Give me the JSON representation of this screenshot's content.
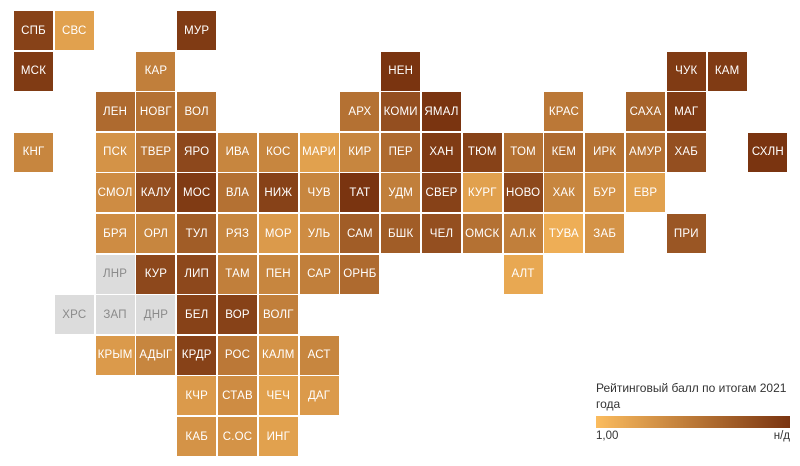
{
  "legend": {
    "title": "Рейтинговый балл по итогам 2021 года",
    "min_label": "1,00",
    "max_label": "н/д",
    "gradient_start": "#fbbc5e",
    "gradient_end": "#7a3410",
    "nodata_color": "#dcdcdc"
  },
  "regions": [
    {
      "code": "СПБ",
      "col": 0,
      "row": 0,
      "score": 0.9
    },
    {
      "code": "СВС",
      "col": 1,
      "row": 0,
      "score": 0.2
    },
    {
      "code": "МУР",
      "col": 4,
      "row": 0,
      "score": 0.95
    },
    {
      "code": "МСК",
      "col": 0,
      "row": 1,
      "score": 0.95
    },
    {
      "code": "КАР",
      "col": 3,
      "row": 1,
      "score": 0.45
    },
    {
      "code": "НЕН",
      "col": 9,
      "row": 1,
      "score": 1.0
    },
    {
      "code": "ЧУК",
      "col": 16,
      "row": 1,
      "score": 0.95
    },
    {
      "code": "КАМ",
      "col": 17,
      "row": 1,
      "score": 0.95
    },
    {
      "code": "ЛЕН",
      "col": 2,
      "row": 2,
      "score": 0.6
    },
    {
      "code": "НОВГ",
      "col": 3,
      "row": 2,
      "score": 0.55
    },
    {
      "code": "ВОЛ",
      "col": 4,
      "row": 2,
      "score": 0.55
    },
    {
      "code": "АРХ",
      "col": 8,
      "row": 2,
      "score": 0.55
    },
    {
      "code": "КОМИ",
      "col": 9,
      "row": 2,
      "score": 0.8
    },
    {
      "code": "ЯМАЛ",
      "col": 10,
      "row": 2,
      "score": 1.0
    },
    {
      "code": "КРАС",
      "col": 13,
      "row": 2,
      "score": 0.5
    },
    {
      "code": "САХА",
      "col": 15,
      "row": 2,
      "score": 0.65
    },
    {
      "code": "МАГ",
      "col": 16,
      "row": 2,
      "score": 0.95
    },
    {
      "code": "КНГ",
      "col": 0,
      "row": 3,
      "score": 0.4
    },
    {
      "code": "ПСК",
      "col": 2,
      "row": 3,
      "score": 0.3
    },
    {
      "code": "ТВЕР",
      "col": 3,
      "row": 3,
      "score": 0.5
    },
    {
      "code": "ЯРО",
      "col": 4,
      "row": 3,
      "score": 0.85
    },
    {
      "code": "ИВА",
      "col": 5,
      "row": 3,
      "score": 0.4
    },
    {
      "code": "КОС",
      "col": 6,
      "row": 3,
      "score": 0.4
    },
    {
      "code": "МАРИ",
      "col": 7,
      "row": 3,
      "score": 0.2
    },
    {
      "code": "КИР",
      "col": 8,
      "row": 3,
      "score": 0.4
    },
    {
      "code": "ПЕР",
      "col": 9,
      "row": 3,
      "score": 0.6
    },
    {
      "code": "ХАН",
      "col": 10,
      "row": 3,
      "score": 0.95
    },
    {
      "code": "ТЮМ",
      "col": 11,
      "row": 3,
      "score": 0.9
    },
    {
      "code": "ТОМ",
      "col": 12,
      "row": 3,
      "score": 0.55
    },
    {
      "code": "КЕМ",
      "col": 13,
      "row": 3,
      "score": 0.6
    },
    {
      "code": "ИРК",
      "col": 14,
      "row": 3,
      "score": 0.55
    },
    {
      "code": "АМУР",
      "col": 15,
      "row": 3,
      "score": 0.55
    },
    {
      "code": "ХАБ",
      "col": 16,
      "row": 3,
      "score": 0.8
    },
    {
      "code": "СХЛН",
      "col": 18,
      "row": 3,
      "score": 1.0
    },
    {
      "code": "СМОЛ",
      "col": 2,
      "row": 4,
      "score": 0.35
    },
    {
      "code": "КАЛУ",
      "col": 3,
      "row": 4,
      "score": 0.8
    },
    {
      "code": "МОС",
      "col": 4,
      "row": 4,
      "score": 0.95
    },
    {
      "code": "ВЛА",
      "col": 5,
      "row": 4,
      "score": 0.55
    },
    {
      "code": "НИЖ",
      "col": 6,
      "row": 4,
      "score": 0.9
    },
    {
      "code": "ЧУВ",
      "col": 7,
      "row": 4,
      "score": 0.4
    },
    {
      "code": "ТАТ",
      "col": 8,
      "row": 4,
      "score": 1.0
    },
    {
      "code": "УДМ",
      "col": 9,
      "row": 4,
      "score": 0.45
    },
    {
      "code": "СВЕР",
      "col": 10,
      "row": 4,
      "score": 0.9
    },
    {
      "code": "КУРГ",
      "col": 11,
      "row": 4,
      "score": 0.2
    },
    {
      "code": "НОВО",
      "col": 12,
      "row": 4,
      "score": 0.85
    },
    {
      "code": "ХАК",
      "col": 13,
      "row": 4,
      "score": 0.4
    },
    {
      "code": "БУР",
      "col": 14,
      "row": 4,
      "score": 0.3
    },
    {
      "code": "ЕВР",
      "col": 15,
      "row": 4,
      "score": 0.2
    },
    {
      "code": "БРЯ",
      "col": 2,
      "row": 5,
      "score": 0.35
    },
    {
      "code": "ОРЛ",
      "col": 3,
      "row": 5,
      "score": 0.4
    },
    {
      "code": "ТУЛ",
      "col": 4,
      "row": 5,
      "score": 0.7
    },
    {
      "code": "РЯЗ",
      "col": 5,
      "row": 5,
      "score": 0.4
    },
    {
      "code": "МОР",
      "col": 6,
      "row": 5,
      "score": 0.25
    },
    {
      "code": "УЛЬ",
      "col": 7,
      "row": 5,
      "score": 0.35
    },
    {
      "code": "САМ",
      "col": 8,
      "row": 5,
      "score": 0.7
    },
    {
      "code": "БШК",
      "col": 9,
      "row": 5,
      "score": 0.7
    },
    {
      "code": "ЧЕЛ",
      "col": 10,
      "row": 5,
      "score": 0.8
    },
    {
      "code": "ОМСК",
      "col": 11,
      "row": 5,
      "score": 0.55
    },
    {
      "code": "АЛ.К",
      "col": 12,
      "row": 5,
      "score": 0.45
    },
    {
      "code": "ТУВА",
      "col": 13,
      "row": 5,
      "score": 0.1
    },
    {
      "code": "ЗАБ",
      "col": 14,
      "row": 5,
      "score": 0.3
    },
    {
      "code": "ПРИ",
      "col": 16,
      "row": 5,
      "score": 0.75
    },
    {
      "code": "ЛНР",
      "col": 2,
      "row": 6,
      "score": null
    },
    {
      "code": "КУР",
      "col": 3,
      "row": 6,
      "score": 0.85
    },
    {
      "code": "ЛИП",
      "col": 4,
      "row": 6,
      "score": 0.85
    },
    {
      "code": "ТАМ",
      "col": 5,
      "row": 6,
      "score": 0.45
    },
    {
      "code": "ПЕН",
      "col": 6,
      "row": 6,
      "score": 0.4
    },
    {
      "code": "САР",
      "col": 7,
      "row": 6,
      "score": 0.45
    },
    {
      "code": "ОРНБ",
      "col": 8,
      "row": 6,
      "score": 0.6
    },
    {
      "code": "АЛТ",
      "col": 12,
      "row": 6,
      "score": 0.15
    },
    {
      "code": "ХРС",
      "col": 1,
      "row": 7,
      "score": null
    },
    {
      "code": "ЗАП",
      "col": 2,
      "row": 7,
      "score": null
    },
    {
      "code": "ДНР",
      "col": 3,
      "row": 7,
      "score": null
    },
    {
      "code": "БЕЛ",
      "col": 4,
      "row": 7,
      "score": 0.9
    },
    {
      "code": "ВОР",
      "col": 5,
      "row": 7,
      "score": 0.9
    },
    {
      "code": "ВОЛГ",
      "col": 6,
      "row": 7,
      "score": 0.45
    },
    {
      "code": "КРЫМ",
      "col": 2,
      "row": 8,
      "score": 0.25
    },
    {
      "code": "АДЫГ",
      "col": 3,
      "row": 8,
      "score": 0.4
    },
    {
      "code": "КРДР",
      "col": 4,
      "row": 8,
      "score": 0.9
    },
    {
      "code": "РОС",
      "col": 5,
      "row": 8,
      "score": 0.5
    },
    {
      "code": "КАЛМ",
      "col": 6,
      "row": 8,
      "score": 0.3
    },
    {
      "code": "АСТ",
      "col": 7,
      "row": 8,
      "score": 0.4
    },
    {
      "code": "КЧР",
      "col": 4,
      "row": 9,
      "score": 0.25
    },
    {
      "code": "СТАВ",
      "col": 5,
      "row": 9,
      "score": 0.35
    },
    {
      "code": "ЧЕЧ",
      "col": 6,
      "row": 9,
      "score": 0.2
    },
    {
      "code": "ДАГ",
      "col": 7,
      "row": 9,
      "score": 0.25
    },
    {
      "code": "КАБ",
      "col": 4,
      "row": 10,
      "score": 0.3
    },
    {
      "code": "С.ОС",
      "col": 5,
      "row": 10,
      "score": 0.3
    },
    {
      "code": "ИНГ",
      "col": 6,
      "row": 10,
      "score": 0.2
    }
  ]
}
